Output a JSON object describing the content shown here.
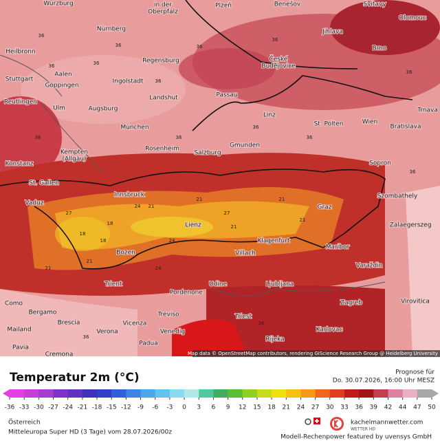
{
  "map": {
    "attribution": "Map data © OpenStreetMap contributors, rendering GIScience Research Group @ Heidelberg University",
    "cities": [
      "Würzburg",
      "in der",
      "Oberpfalz",
      "Plzeň",
      "Benešov",
      "Svitavy",
      "Olomouc",
      "Nürnberg",
      "Jihlava",
      "Heilbronn",
      "Regensburg",
      "České",
      "Budějovice",
      "Brno",
      "Aalen",
      "Göppingen",
      "Stuttgart",
      "Ingolstadt",
      "Passau",
      "Reutlingen",
      "Ulm",
      "Landshut",
      "Augsburg",
      "Linz",
      "St. Pölten",
      "Wien",
      "Trnava",
      "München",
      "Bratislava",
      "Kempten",
      "(Allgäu)",
      "Rosenheim",
      "Salzburg",
      "Gmunden",
      "Sopron",
      "Konstanz",
      "St. Gallen",
      "Vaduz",
      "Innsbruck",
      "Graz",
      "Szombathely",
      "Lienz",
      "Zalaegerszeg",
      "Klagenfurt",
      "Maribor",
      "Villach",
      "Bozen",
      "Varaždin",
      "Trient",
      "Udine",
      "Ljubljana",
      "Pordenone",
      "Zagreb",
      "Virovitica",
      "Como",
      "Bergamo",
      "Treviso",
      "Brescia",
      "Triest",
      "Vicenza",
      "Mailand",
      "Verona",
      "Venedig",
      "Karlovac",
      "Padua",
      "Rijeka",
      "Pavia",
      "Cremona"
    ],
    "temperature_labels": [
      36,
      36,
      36,
      36,
      36,
      36,
      36,
      36,
      36,
      36,
      36,
      36,
      36,
      36,
      36,
      21,
      18,
      24,
      27,
      21,
      18,
      21,
      24,
      21,
      21,
      18,
      21,
      27,
      21,
      24
    ]
  },
  "header": {
    "title": "Temperatur 2m (°C)",
    "forecast_label": "Prognose für",
    "forecast_time": "Do. 30.07.2026, 16:00 Uhr MESZ"
  },
  "legend": {
    "ticks": [
      -36,
      -33,
      -30,
      -27,
      -24,
      -21,
      -18,
      -15,
      -12,
      -9,
      -6,
      -3,
      0,
      3,
      6,
      9,
      12,
      15,
      18,
      21,
      24,
      27,
      30,
      33,
      36,
      39,
      42,
      44,
      47,
      50
    ],
    "colors": [
      "#e43ee4",
      "#c83cd8",
      "#a43cd0",
      "#8030c8",
      "#6030c0",
      "#4030b8",
      "#3040c8",
      "#3060d8",
      "#3c84e4",
      "#48a8ec",
      "#60c4f0",
      "#88dcf0",
      "#b0e8e8",
      "#50c8a0",
      "#40b060",
      "#58c030",
      "#90d020",
      "#c8dc18",
      "#f0e010",
      "#f8c010",
      "#f89818",
      "#f06820",
      "#e03c20",
      "#c01c1c",
      "#a01418",
      "#c04050",
      "#e080a0",
      "#e8b0c0",
      "#a8a8a8"
    ]
  },
  "footer": {
    "region": "Österreich",
    "model": "Mitteleuropa Super HD (3 Tage) vom 28.07.2026/00z",
    "brand": "kachelmannwetter.com",
    "brand_sub": "WETTER HD",
    "credit": "Modell-Rechenpower featured by uvensys GmbH"
  }
}
